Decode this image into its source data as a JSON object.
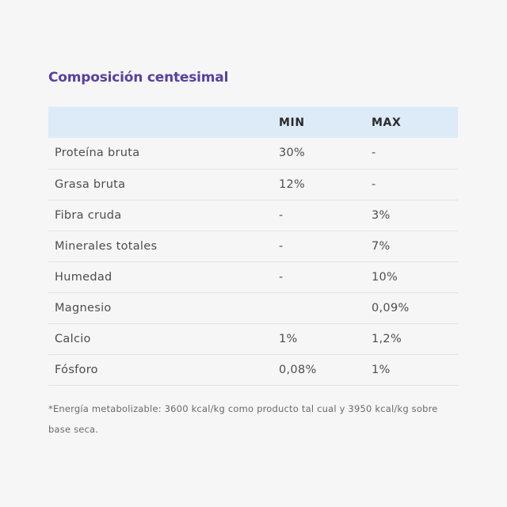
{
  "section": {
    "title": "Composición centesimal"
  },
  "table": {
    "headers": [
      "",
      "MIN",
      "MAX"
    ],
    "rows": [
      {
        "name": "Proteína bruta",
        "min": "30%",
        "max": "-"
      },
      {
        "name": "Grasa bruta",
        "min": "12%",
        "max": "-"
      },
      {
        "name": "Fibra cruda",
        "min": "-",
        "max": "3%"
      },
      {
        "name": "Minerales totales",
        "min": "-",
        "max": "7%"
      },
      {
        "name": "Humedad",
        "min": "-",
        "max": "10%"
      },
      {
        "name": "Magnesio",
        "min": "",
        "max": "0,09%"
      },
      {
        "name": "Calcio",
        "min": "1%",
        "max": "1,2%"
      },
      {
        "name": "Fósforo",
        "min": "0,08%",
        "max": "1%"
      }
    ]
  },
  "footnote": {
    "text": "*Energía metabolizable: 3600 kcal/kg como producto tal cual y 3950 kcal/kg sobre base seca."
  },
  "colors": {
    "title": "#5a3fa0",
    "header_bg": "#dcebf7",
    "page_bg": "#f6f6f6"
  }
}
